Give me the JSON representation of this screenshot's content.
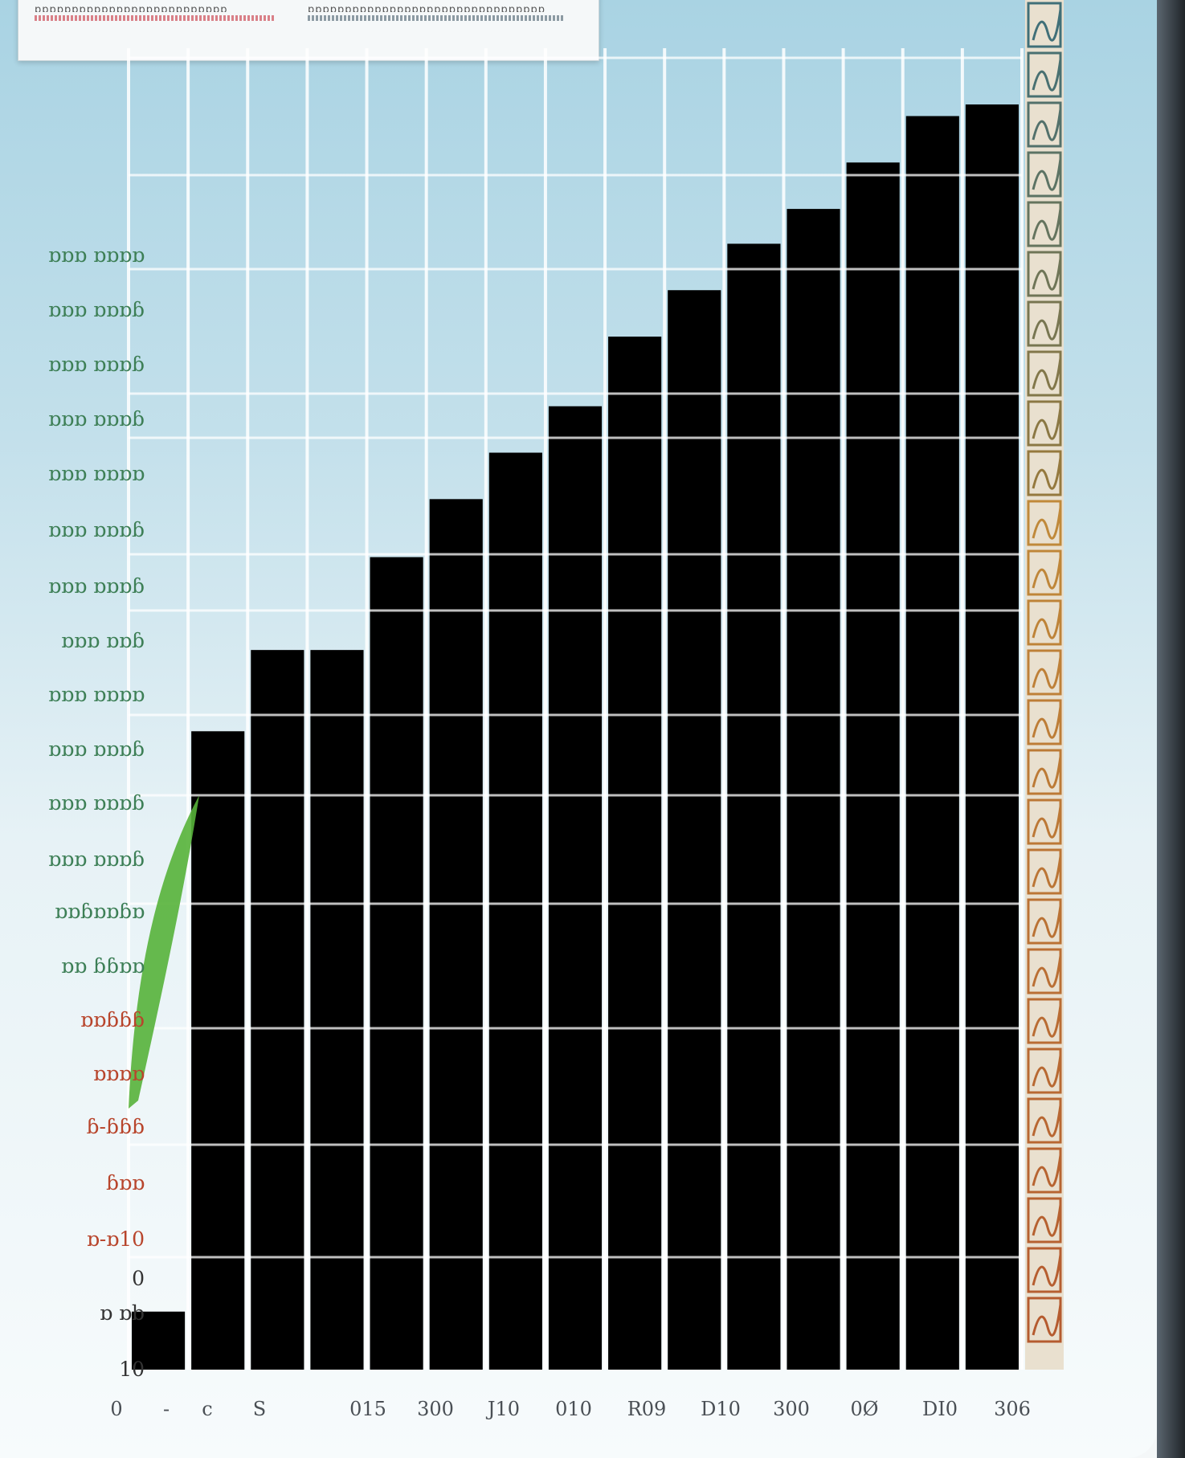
{
  "chart_data": {
    "type": "bar",
    "title": "",
    "xlabel": "",
    "ylabel": "",
    "categories": [
      "0",
      "-",
      "c",
      "S",
      "",
      "015",
      "300",
      "J10",
      "010",
      "R09",
      "D10",
      "300",
      "0Ø",
      "DI0",
      "306"
    ],
    "values": [
      5,
      55,
      62,
      62,
      70,
      75,
      79,
      83,
      89,
      93,
      97,
      100,
      104,
      108,
      109
    ],
    "ylim": [
      0,
      118
    ],
    "y_tick_labels": [
      "10",
      "ɒ ɒb",
      "0",
      "ɒ-ɒ10",
      "ɓɒɒ",
      "ɓ-ɓɓɓ",
      "ɒɒɒɒ",
      "ɒɒɓɓɓ",
      "ɒɒ ɓɓɒɒ",
      "ɒɒɓɒɒɓɒ",
      "ɒɒɒ ɒɒɒɓ",
      "ɒɒɒ ɒɒɒɓ",
      "ɒɒɒ ɒɒɒɓ",
      "ɒɒɒ ɒɒɒɒ",
      "ɒɒɒ ɒɒɓ",
      "ɒɒɒ ɒɒɒɓ",
      "ɒɒɒ ɒɒɒɓ",
      "ɒɒɒ ɒɒɒɒ",
      "ɒɒɒ ɒɒɒɓ",
      "ɒɒɒ ɒɒɒɓ",
      "ɒɒɒ ɒɒɒɓ",
      "ɒɒɒ ɒɒɒɒ"
    ],
    "grid": true,
    "legend": {
      "placement": "top-left",
      "entries": [
        {
          "label": "ɒɒɒɒɒɒɒɒɒɒɒɒɒɒɒɒɒɒɒɒɒɒɒɒɒɒ",
          "color": "#d98088"
        },
        {
          "label": "ɒɒɒɒɒɒɒɒɒɒɒɒɒɒɒɒɒɒɒɒɒɒɒɒɒɒɒɒɒɒɒɒ",
          "color": "#8c9aa3"
        }
      ]
    },
    "colors": {
      "start": "#1f7d67",
      "middle": "#f6c93a",
      "end": "#ee5a1c",
      "leaf": "#56b23a",
      "pattern": "#b4572e"
    }
  }
}
